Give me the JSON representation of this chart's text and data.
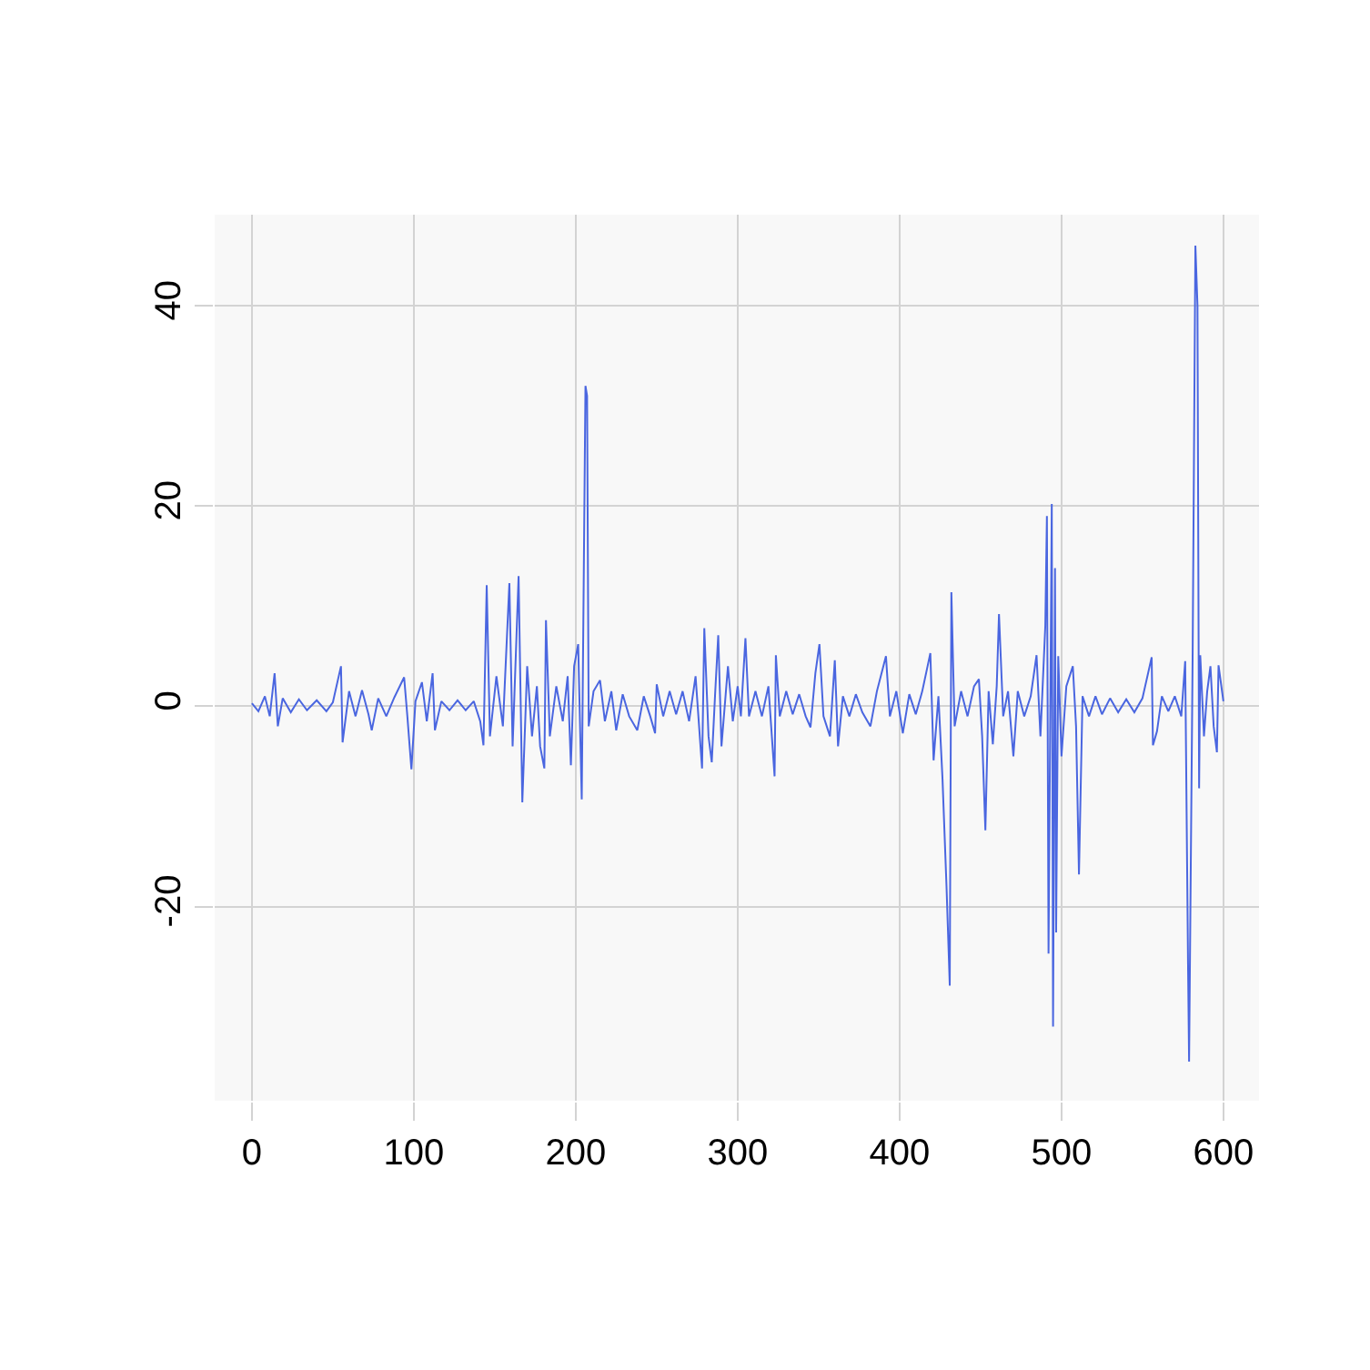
{
  "chart_data": {
    "type": "line",
    "xlim": [
      -23,
      622
    ],
    "ylim": [
      -39.4,
      49.1
    ],
    "xticks": [
      0,
      100,
      200,
      300,
      400,
      500,
      600
    ],
    "yticks": [
      -20,
      0,
      20,
      40
    ],
    "grid": true,
    "line_style": "solid",
    "marker": "none",
    "series": [
      {
        "color": "#4a66e0",
        "x": [
          0,
          4,
          8,
          11,
          14,
          16,
          19,
          24,
          29,
          34,
          40,
          46,
          50,
          55,
          56,
          60,
          64,
          68,
          72,
          74,
          78,
          83,
          88,
          94,
          96,
          98.5,
          101,
          105,
          108,
          111.6,
          113,
          117,
          122,
          127,
          132,
          137,
          141,
          143,
          145,
          147,
          151,
          155,
          159,
          161,
          164.7,
          167,
          170,
          173,
          176,
          178,
          180.6,
          181.6,
          184,
          188,
          192,
          195,
          197,
          199,
          201.5,
          203.7,
          206,
          207,
          208,
          211,
          215,
          218,
          222,
          225,
          229,
          233,
          238,
          242,
          246,
          249,
          250,
          254,
          258,
          262,
          266,
          270,
          274,
          278,
          279.4,
          282,
          284,
          286,
          288,
          290,
          294,
          297,
          300,
          302,
          304.8,
          307,
          311,
          315,
          319,
          322.8,
          323.6,
          326,
          330,
          334,
          338,
          342,
          345,
          348,
          350.5,
          353,
          357,
          360,
          362,
          365,
          369,
          373,
          377,
          382,
          386,
          390,
          391.6,
          394,
          398,
          402,
          406,
          410,
          414,
          419,
          421,
          424,
          426.5,
          429,
          431,
          432,
          434,
          438,
          442,
          446,
          449,
          451,
          453,
          455,
          457.6,
          460,
          461.4,
          464,
          467,
          470.3,
          473,
          477,
          481,
          484.6,
          487,
          490,
          491,
          492,
          494,
          494.8,
          496,
          496.7,
          498,
          500,
          503,
          507,
          509,
          510.8,
          513,
          517,
          521,
          525,
          530,
          535,
          540,
          545,
          550,
          555.7,
          556.5,
          559,
          562,
          566,
          570,
          574,
          576.4,
          578.2,
          578.8,
          581,
          582.7,
          584,
          585,
          585.7,
          588,
          590,
          592,
          594,
          596,
          597,
          600
        ],
        "values": [
          0.3,
          -0.5,
          1,
          -1,
          3.3,
          -2,
          0.8,
          -0.6,
          0.7,
          -0.4,
          0.6,
          -0.5,
          0.4,
          4,
          -3.6,
          1.5,
          -1,
          1.6,
          -0.8,
          -2.4,
          0.8,
          -1,
          0.9,
          2.9,
          -1,
          -6.3,
          0.5,
          2.4,
          -1.5,
          3.3,
          -2.4,
          0.5,
          -0.4,
          0.6,
          -0.4,
          0.5,
          -1.5,
          -3.9,
          12.1,
          -3,
          3,
          -2,
          12.3,
          -4,
          13,
          -9.6,
          4,
          -3,
          2,
          -4,
          -6.2,
          8.6,
          -3,
          2,
          -1.5,
          3,
          -5.9,
          4,
          6.2,
          -9.3,
          32,
          31,
          -2,
          1.5,
          2.6,
          -1.5,
          1.5,
          -2.4,
          1.2,
          -1,
          -2.4,
          1,
          -1,
          -2.7,
          2.2,
          -1,
          1.5,
          -0.8,
          1.5,
          -1.5,
          3,
          -6.2,
          7.8,
          -3,
          -5.6,
          1,
          7.1,
          -4,
          4,
          -1.5,
          2,
          -1,
          6.8,
          -1,
          1.5,
          -1,
          2,
          -7,
          5.1,
          -1,
          1.5,
          -0.8,
          1.2,
          -1,
          -2.1,
          3.3,
          6.2,
          -1,
          -3,
          4.6,
          -4,
          1,
          -1,
          1.2,
          -0.6,
          -2,
          1.5,
          4,
          5,
          -1,
          1.5,
          -2.7,
          1.2,
          -0.8,
          1.5,
          5.3,
          -5.4,
          1,
          -7.2,
          -18,
          -27.9,
          11.4,
          -2,
          1.5,
          -1,
          2,
          2.7,
          -3,
          -12.4,
          1.5,
          -3.8,
          2,
          9.2,
          -1,
          1.5,
          -5,
          1.5,
          -1,
          1,
          5.1,
          -3,
          8,
          19,
          -24.7,
          20.2,
          -32,
          13.8,
          -22.6,
          5,
          -5,
          2,
          4,
          -2,
          -16.8,
          1,
          -1,
          1,
          -0.8,
          0.8,
          -0.6,
          0.7,
          -0.6,
          0.8,
          4.9,
          -3.9,
          -2.5,
          1,
          -0.5,
          1,
          -1,
          4.5,
          -26.4,
          -35.5,
          5,
          46,
          40,
          -8.2,
          5.1,
          -3,
          1.5,
          4,
          -2,
          -4.6,
          4.1,
          0.5
        ]
      }
    ]
  }
}
